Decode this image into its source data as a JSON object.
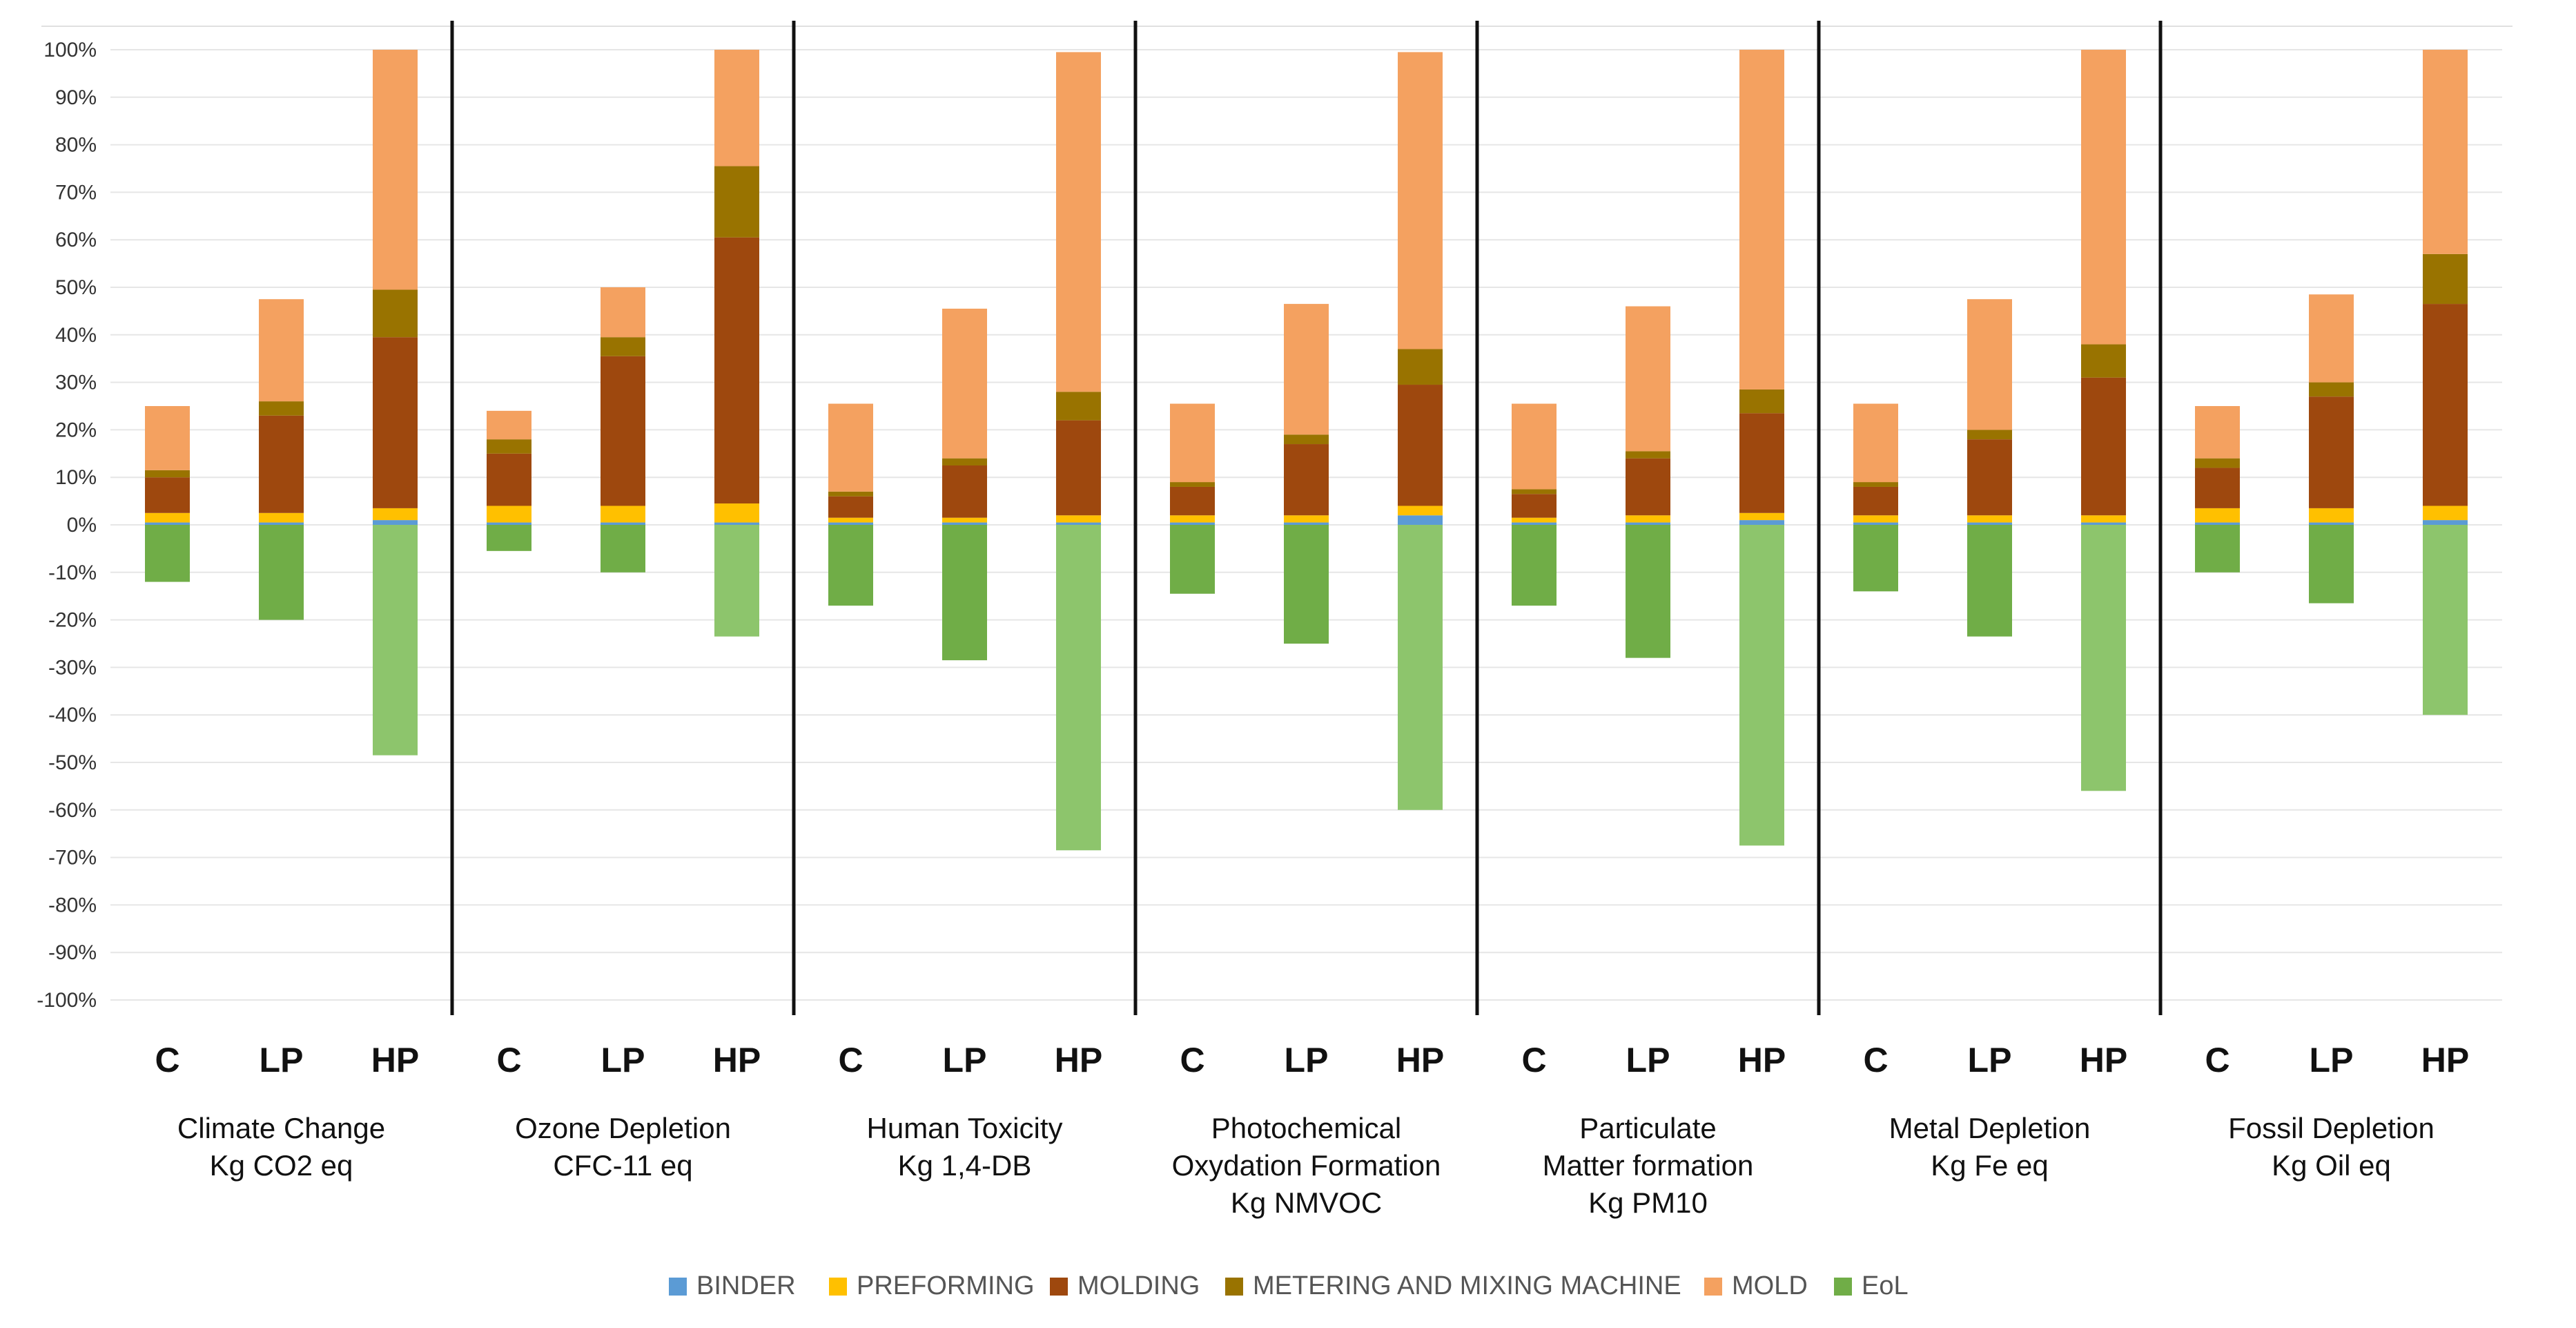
{
  "chart_data": {
    "type": "bar",
    "stacked": true,
    "y_axis": {
      "range": [
        -100,
        100
      ],
      "tick_step": 10,
      "tick_labels": [
        "-100%",
        "-90%",
        "-80%",
        "-70%",
        "-60%",
        "-50%",
        "-40%",
        "-30%",
        "-20%",
        "-10%",
        "0%",
        "10%",
        "20%",
        "30%",
        "40%",
        "50%",
        "60%",
        "70%",
        "80%",
        "90%",
        "100%"
      ]
    },
    "grid": true,
    "legend_position": "bottom",
    "series": [
      {
        "name": "BINDER",
        "color": "#5B9BD5"
      },
      {
        "name": "PREFORMING",
        "color": "#FFC000"
      },
      {
        "name": "MOLDING",
        "color": "#9E480E"
      },
      {
        "name": "METERING AND MIXING MACHINE",
        "color": "#997300"
      },
      {
        "name": "MOLD",
        "color": "#F4A160"
      },
      {
        "name": "EoL",
        "color": "#70AD47"
      }
    ],
    "groups": [
      {
        "title_lines": [
          "Climate Change",
          "Kg CO2 eq"
        ],
        "categories": [
          "C",
          "LP",
          "HP"
        ],
        "values": {
          "BINDER": [
            0.5,
            0.5,
            1
          ],
          "PREFORMING": [
            2,
            2,
            2.5
          ],
          "MOLDING": [
            7.5,
            20.5,
            36
          ],
          "METERING AND MIXING MACHINE": [
            1.5,
            3,
            10
          ],
          "MOLD": [
            13.5,
            21.5,
            50.5
          ],
          "EoL": [
            -12,
            -20,
            -48.5
          ]
        }
      },
      {
        "title_lines": [
          "Ozone Depletion",
          "CFC-11 eq"
        ],
        "categories": [
          "C",
          "LP",
          "HP"
        ],
        "values": {
          "BINDER": [
            0.5,
            0.5,
            0.5
          ],
          "PREFORMING": [
            3.5,
            3.5,
            4
          ],
          "MOLDING": [
            11,
            31.5,
            56
          ],
          "METERING AND MIXING MACHINE": [
            3,
            4,
            15
          ],
          "MOLD": [
            6,
            10.5,
            24.5
          ],
          "EoL": [
            -5.5,
            -10,
            -23.5
          ]
        }
      },
      {
        "title_lines": [
          "Human Toxicity",
          "Kg 1,4-DB"
        ],
        "categories": [
          "C",
          "LP",
          "HP"
        ],
        "values": {
          "BINDER": [
            0.5,
            0.5,
            0.5
          ],
          "PREFORMING": [
            1,
            1,
            1.5
          ],
          "MOLDING": [
            4.5,
            11,
            20
          ],
          "METERING AND MIXING MACHINE": [
            1,
            1.5,
            6
          ],
          "MOLD": [
            18.5,
            31.5,
            71.5
          ],
          "EoL": [
            -17,
            -28.5,
            -68.5
          ]
        }
      },
      {
        "title_lines": [
          "Photochemical",
          "Oxydation Formation",
          "Kg NMVOC"
        ],
        "categories": [
          "C",
          "LP",
          "HP"
        ],
        "values": {
          "BINDER": [
            0.5,
            0.5,
            2
          ],
          "PREFORMING": [
            1.5,
            1.5,
            2
          ],
          "MOLDING": [
            6,
            15,
            25.5
          ],
          "METERING AND MIXING MACHINE": [
            1,
            2,
            7.5
          ],
          "MOLD": [
            16.5,
            27.5,
            62.5
          ],
          "EoL": [
            -14.5,
            -25,
            -60
          ]
        }
      },
      {
        "title_lines": [
          "Particulate",
          "Matter formation",
          "Kg PM10"
        ],
        "categories": [
          "C",
          "LP",
          "HP"
        ],
        "values": {
          "BINDER": [
            0.5,
            0.5,
            1
          ],
          "PREFORMING": [
            1,
            1.5,
            1.5
          ],
          "MOLDING": [
            5,
            12,
            21
          ],
          "METERING AND MIXING MACHINE": [
            1,
            1.5,
            5
          ],
          "MOLD": [
            18,
            30.5,
            71.5
          ],
          "EoL": [
            -17,
            -28,
            -67.5
          ]
        }
      },
      {
        "title_lines": [
          "Metal Depletion",
          "Kg Fe eq"
        ],
        "categories": [
          "C",
          "LP",
          "HP"
        ],
        "values": {
          "BINDER": [
            0.5,
            0.5,
            0.5
          ],
          "PREFORMING": [
            1.5,
            1.5,
            1.5
          ],
          "MOLDING": [
            6,
            16,
            29
          ],
          "METERING AND MIXING MACHINE": [
            1,
            2,
            7
          ],
          "MOLD": [
            16.5,
            27.5,
            62
          ],
          "EoL": [
            -14,
            -23.5,
            -56
          ]
        }
      },
      {
        "title_lines": [
          "Fossil Depletion",
          "Kg Oil eq"
        ],
        "categories": [
          "C",
          "LP",
          "HP"
        ],
        "values": {
          "BINDER": [
            0.5,
            0.5,
            1
          ],
          "PREFORMING": [
            3,
            3,
            3
          ],
          "MOLDING": [
            8.5,
            23.5,
            42.5
          ],
          "METERING AND MIXING MACHINE": [
            2,
            3,
            10.5
          ],
          "MOLD": [
            11,
            18.5,
            43
          ],
          "EoL": [
            -10,
            -16.5,
            -40
          ]
        }
      }
    ]
  }
}
